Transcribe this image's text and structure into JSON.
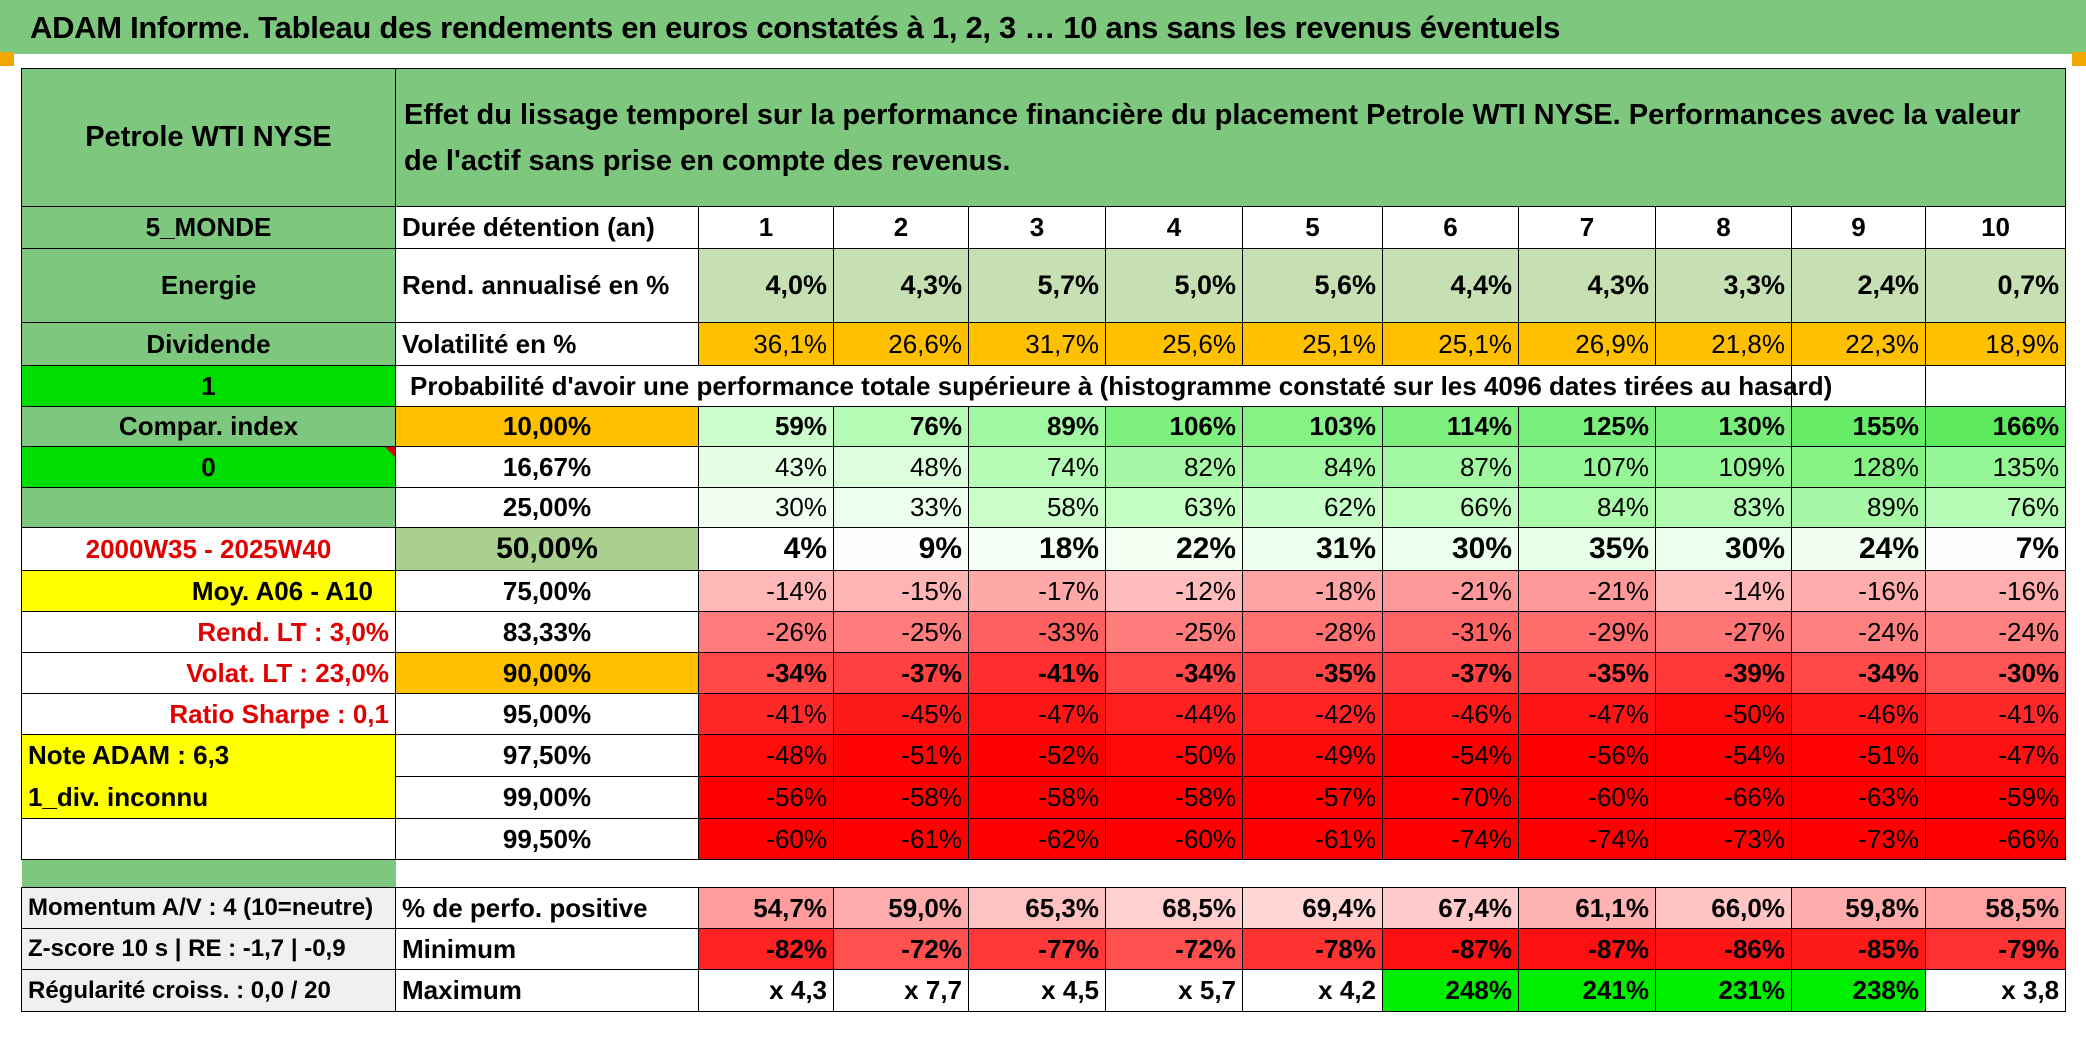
{
  "header": {
    "title": "ADAM Informe. Tableau des rendements en euros constatés à 1, 2, 3 … 10 ans sans les revenus éventuels"
  },
  "left": {
    "asset_name": "Petrole WTI NYSE",
    "region": "5_MONDE",
    "sector": "Energie",
    "dividend_label": "Dividende",
    "dividend_value": "1",
    "compar_label": "Compar. index",
    "compar_value": "0",
    "period": "2000W35 - 2025W40",
    "moy": "Moy. A06 - A10",
    "rend_lt": "Rend. LT :   3,0%",
    "volat_lt": "Volat. LT :   23,0%",
    "sharpe": "Ratio Sharpe :   0,1",
    "note": "Note ADAM : 6,3",
    "div_status": "1_div. inconnu",
    "momentum": "Momentum A/V : 4 (10=neutre)",
    "zscore": "Z-score 10 s | RE : -1,7 | -0,9",
    "regularite": "Régularité croiss. : 0,0 / 20"
  },
  "description": "Effet du lissage temporel sur la performance financière du placement Petrole WTI NYSE. Performances avec la valeur de l'actif sans prise en compte des revenus.",
  "labels": {
    "duree": "Durée détention (an)",
    "rend": "Rend. annualisé en %",
    "vol": "Volatilité en %",
    "proba": "Probabilité d'avoir une performance totale supérieure à (histogramme constaté sur les 4096 dates tirées au hasard)",
    "pos": "% de perfo. positive",
    "min": "Minimum",
    "max": "Maximum"
  },
  "years": [
    "1",
    "2",
    "3",
    "4",
    "5",
    "6",
    "7",
    "8",
    "9",
    "10"
  ],
  "rend": [
    "4,0%",
    "4,3%",
    "5,7%",
    "5,0%",
    "5,6%",
    "4,4%",
    "4,3%",
    "3,3%",
    "2,4%",
    "0,7%"
  ],
  "vol": [
    "36,1%",
    "26,6%",
    "31,7%",
    "25,6%",
    "25,1%",
    "25,1%",
    "26,9%",
    "21,8%",
    "22,3%",
    "18,9%"
  ],
  "proba_rows": [
    {
      "p": "10,00%",
      "v": [
        "59%",
        "76%",
        "89%",
        "106%",
        "103%",
        "114%",
        "125%",
        "130%",
        "155%",
        "166%"
      ]
    },
    {
      "p": "16,67%",
      "v": [
        "43%",
        "48%",
        "74%",
        "82%",
        "84%",
        "87%",
        "107%",
        "109%",
        "128%",
        "135%"
      ]
    },
    {
      "p": "25,00%",
      "v": [
        "30%",
        "33%",
        "58%",
        "63%",
        "62%",
        "66%",
        "84%",
        "83%",
        "89%",
        "76%"
      ]
    },
    {
      "p": "50,00%",
      "v": [
        "4%",
        "9%",
        "18%",
        "22%",
        "31%",
        "30%",
        "35%",
        "30%",
        "24%",
        "7%"
      ]
    },
    {
      "p": "75,00%",
      "v": [
        "-14%",
        "-15%",
        "-17%",
        "-12%",
        "-18%",
        "-21%",
        "-21%",
        "-14%",
        "-16%",
        "-16%"
      ]
    },
    {
      "p": "83,33%",
      "v": [
        "-26%",
        "-25%",
        "-33%",
        "-25%",
        "-28%",
        "-31%",
        "-29%",
        "-27%",
        "-24%",
        "-24%"
      ]
    },
    {
      "p": "90,00%",
      "v": [
        "-34%",
        "-37%",
        "-41%",
        "-34%",
        "-35%",
        "-37%",
        "-35%",
        "-39%",
        "-34%",
        "-30%"
      ]
    },
    {
      "p": "95,00%",
      "v": [
        "-41%",
        "-45%",
        "-47%",
        "-44%",
        "-42%",
        "-46%",
        "-47%",
        "-50%",
        "-46%",
        "-41%"
      ]
    },
    {
      "p": "97,50%",
      "v": [
        "-48%",
        "-51%",
        "-52%",
        "-50%",
        "-49%",
        "-54%",
        "-56%",
        "-54%",
        "-51%",
        "-47%"
      ]
    },
    {
      "p": "99,00%",
      "v": [
        "-56%",
        "-58%",
        "-58%",
        "-58%",
        "-57%",
        "-70%",
        "-60%",
        "-66%",
        "-63%",
        "-59%"
      ]
    },
    {
      "p": "99,50%",
      "v": [
        "-60%",
        "-61%",
        "-62%",
        "-60%",
        "-61%",
        "-74%",
        "-74%",
        "-73%",
        "-73%",
        "-66%"
      ]
    }
  ],
  "pos": [
    "54,7%",
    "59,0%",
    "65,3%",
    "68,5%",
    "69,4%",
    "67,4%",
    "61,1%",
    "66,0%",
    "59,8%",
    "58,5%"
  ],
  "min": [
    "-82%",
    "-72%",
    "-77%",
    "-72%",
    "-78%",
    "-87%",
    "-87%",
    "-86%",
    "-85%",
    "-79%"
  ],
  "max": [
    "x 4,3",
    "x 7,7",
    "x 4,5",
    "x 5,7",
    "x 4,2",
    "248%",
    "241%",
    "231%",
    "238%",
    "x 3,8"
  ],
  "colors": {
    "header_green": "#7ec77e",
    "bright_green": "#00dd00",
    "orange": "#ffc000",
    "yellow": "#ffff00",
    "red_text": "#e00000",
    "row_colors": [
      [
        "#ccfccc",
        "#b5fab5",
        "#a2f8a2",
        "#7ef07e",
        "#86f286",
        "#7ef07e",
        "#7aee7a",
        "#7aee7a",
        "#66ec66",
        "#5cea5c"
      ],
      [
        "#e4ffe4",
        "#dcfedc",
        "#b5fab5",
        "#a6f8a6",
        "#a2f8a2",
        "#a2f8a2",
        "#94f694",
        "#94f694",
        "#86f286",
        "#94f694"
      ],
      [
        "#f0fff0",
        "#ecffec",
        "#caffca",
        "#c4ffc4",
        "#c6ffc6",
        "#c0fec0",
        "#aafaaa",
        "#b2fab2",
        "#a6f8a6",
        "#b5fab5"
      ],
      [
        "#ffffff",
        "#fcfffc",
        "#f6fff6",
        "#f2fff2",
        "#ecffec",
        "#ecffec",
        "#e8ffe8",
        "#ecffec",
        "#f0fff0",
        "#fcfffc"
      ],
      [
        "#ffb8b8",
        "#ffb4b4",
        "#ffa8a8",
        "#ffbcbc",
        "#ffa4a4",
        "#ff9898",
        "#ff9898",
        "#ffb8b8",
        "#ffacac",
        "#ffacac"
      ],
      [
        "#ff7a7a",
        "#ff7c7c",
        "#ff6060",
        "#ff7c7c",
        "#ff7070",
        "#ff6464",
        "#ff6c6c",
        "#ff7474",
        "#ff8080",
        "#ff8080"
      ],
      [
        "#ff4848",
        "#ff4040",
        "#ff2e2e",
        "#ff4848",
        "#ff4444",
        "#ff4040",
        "#ff4444",
        "#ff3838",
        "#ff4848",
        "#ff5454"
      ],
      [
        "#ff2828",
        "#ff1a1a",
        "#ff1414",
        "#ff1e1e",
        "#ff2424",
        "#ff1818",
        "#ff1414",
        "#ff0a0a",
        "#ff1818",
        "#ff2828"
      ],
      [
        "#ff0c0c",
        "#ff0404",
        "#ff0000",
        "#ff0808",
        "#ff0a0a",
        "#ff0000",
        "#ff0000",
        "#ff0000",
        "#ff0404",
        "#ff1010"
      ],
      [
        "#ff0000",
        "#ff0000",
        "#ff0000",
        "#ff0000",
        "#ff0000",
        "#ff0000",
        "#ff0000",
        "#ff0000",
        "#ff0000",
        "#ff0000"
      ],
      [
        "#ff0000",
        "#ff0000",
        "#ff0000",
        "#ff0000",
        "#ff0000",
        "#ff0000",
        "#ff0000",
        "#ff0000",
        "#ff0000",
        "#ff0000"
      ]
    ],
    "pos_colors": [
      "#ff9c9c",
      "#ffacac",
      "#ffc2c2",
      "#ffd0d0",
      "#ffd6d6",
      "#ffcaca",
      "#ffb2b2",
      "#ffc4c4",
      "#ffacac",
      "#ffa2a2"
    ],
    "min_colors": [
      "#ff2222",
      "#ff5050",
      "#ff3838",
      "#ff5050",
      "#ff3232",
      "#ff1010",
      "#ff1010",
      "#ff1414",
      "#ff1a1a",
      "#ff3030"
    ],
    "max_colors": [
      "#ffffff",
      "#ffffff",
      "#ffffff",
      "#ffffff",
      "#ffffff",
      "#00ee00",
      "#00ee00",
      "#00ee00",
      "#00ee00",
      "#ffffff"
    ]
  }
}
